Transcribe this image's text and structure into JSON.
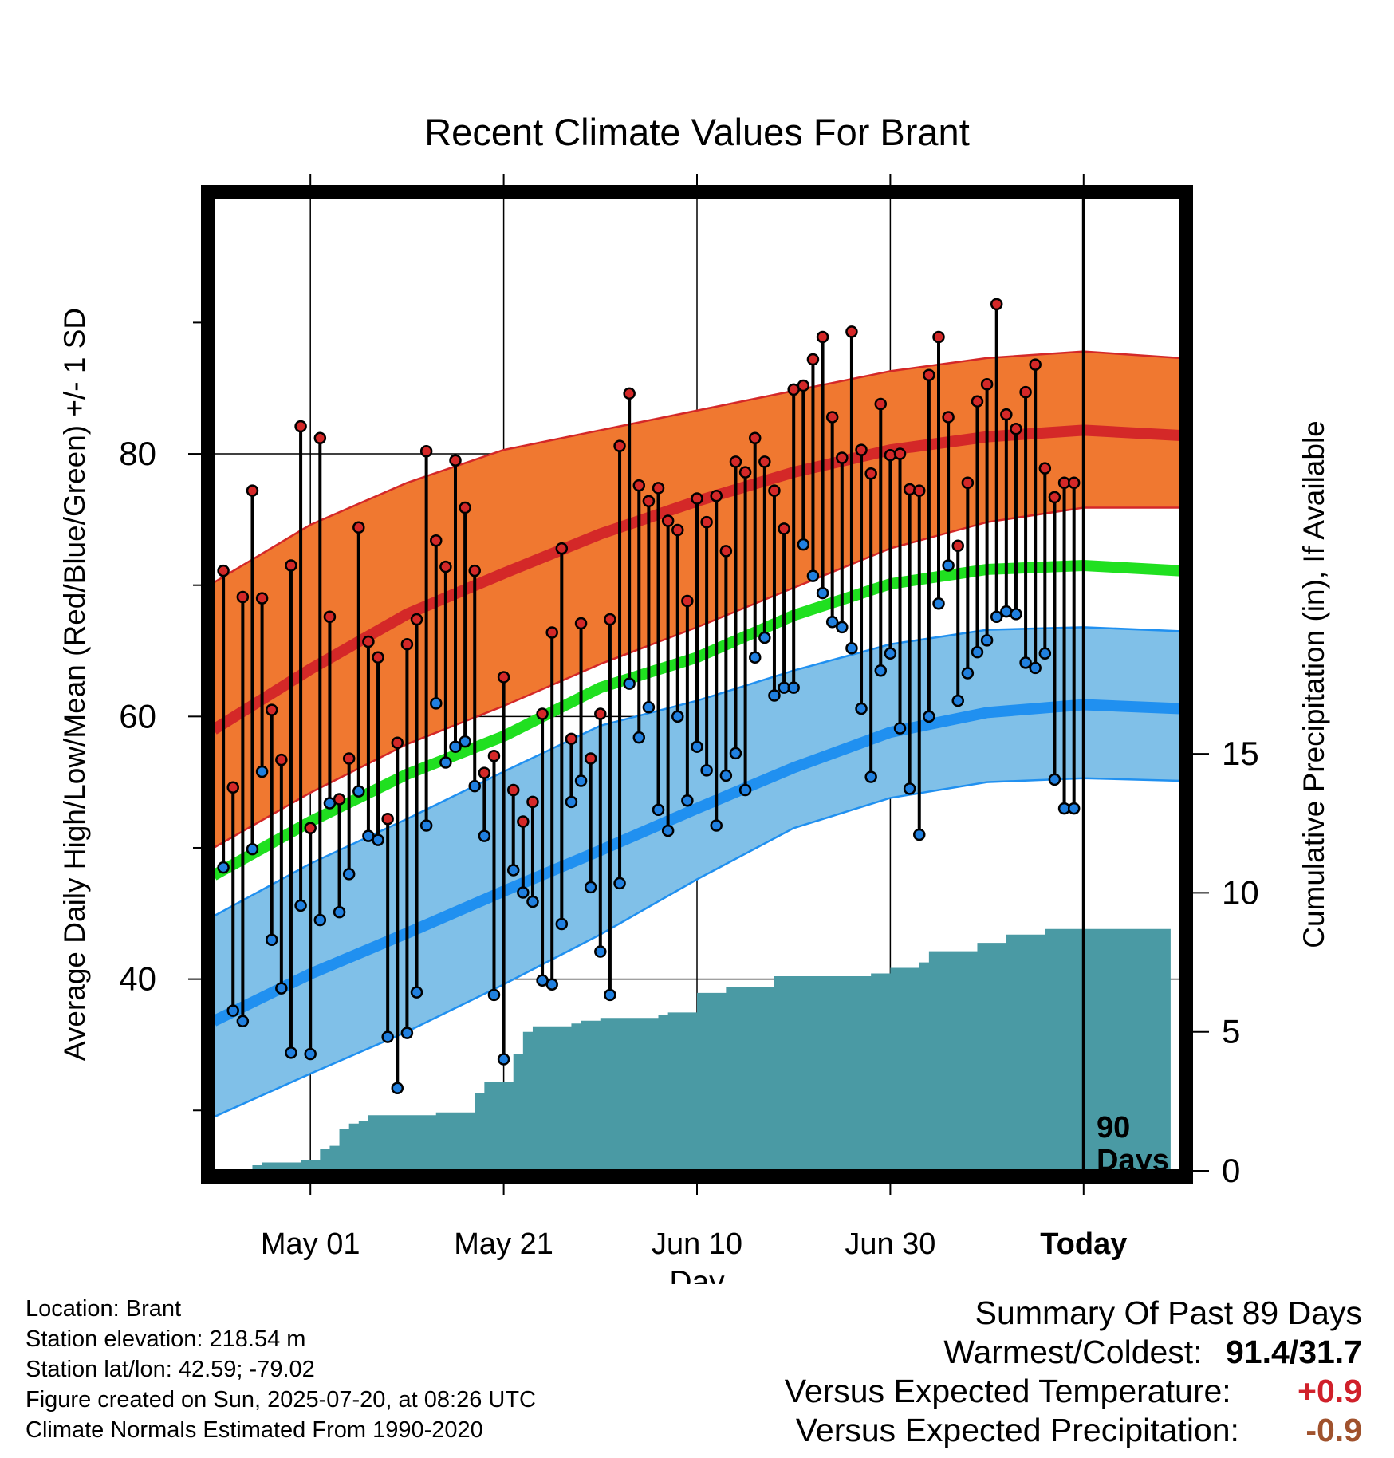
{
  "chart_data": {
    "type": "line",
    "title": "Recent Climate Values For Brant",
    "xlabel": "Day",
    "ylabel_left": "Average Daily High/Low/Mean (Red/Blue/Green) +/- 1 SD",
    "ylabel_right": "Cumulative Precipitation (in), If Available",
    "x_tick_labels": [
      "May 01",
      "May 21",
      "Jun 10",
      "Jun 30",
      "Today"
    ],
    "x_tick_days": [
      10,
      30,
      50,
      70,
      90
    ],
    "y_left_ticks": [
      40,
      60,
      80
    ],
    "y_left_range": [
      25.4,
      99.5
    ],
    "y_right_ticks": [
      0,
      5,
      10,
      15
    ],
    "y_right_range": [
      0,
      35
    ],
    "x_range": [
      0,
      100
    ],
    "today_marker": {
      "day": 90,
      "label_line1": "90",
      "label_line2": "Days"
    },
    "grid": true,
    "colors": {
      "high_band": "#f07830",
      "high_mean": "#d42828",
      "low_band": "#80c0e8",
      "low_mean": "#2090f0",
      "mean": "#20e020",
      "precip": "#4a9aa4",
      "high_dot": "#d42828",
      "low_dot": "#2080e0"
    },
    "normals": {
      "days": [
        0,
        10,
        20,
        30,
        40,
        50,
        60,
        70,
        80,
        90,
        100
      ],
      "high_mean": [
        59.0,
        63.6,
        67.8,
        70.9,
        73.9,
        76.4,
        78.6,
        80.3,
        81.3,
        81.8,
        81.4
      ],
      "high_upper": [
        70.2,
        74.6,
        77.8,
        80.3,
        81.8,
        83.3,
        84.8,
        86.3,
        87.3,
        87.8,
        87.3
      ],
      "high_lower": [
        50.0,
        54.2,
        57.9,
        60.8,
        64.0,
        66.8,
        69.8,
        72.8,
        74.8,
        75.9,
        75.9
      ],
      "avg_mean": [
        47.9,
        52.0,
        55.6,
        58.5,
        62.2,
        64.5,
        67.7,
        70.1,
        71.2,
        71.5,
        71.1
      ],
      "low_mean": [
        36.8,
        40.4,
        43.5,
        46.7,
        49.8,
        53.0,
        56.1,
        58.8,
        60.3,
        60.9,
        60.6
      ],
      "low_upper": [
        44.8,
        48.8,
        52.2,
        55.8,
        59.3,
        61.2,
        63.5,
        65.5,
        66.6,
        66.8,
        66.5
      ],
      "low_lower": [
        29.5,
        32.8,
        36.0,
        39.6,
        43.4,
        47.6,
        51.5,
        53.8,
        55.0,
        55.3,
        55.1
      ]
    },
    "series": [
      {
        "name": "Daily High",
        "days": [
          1,
          2,
          3,
          4,
          5,
          6,
          7,
          8,
          9,
          10,
          11,
          12,
          13,
          14,
          15,
          16,
          17,
          18,
          19,
          20,
          21,
          22,
          23,
          24,
          25,
          26,
          27,
          28,
          29,
          30,
          31,
          32,
          33,
          34,
          35,
          36,
          37,
          38,
          39,
          40,
          41,
          42,
          43,
          44,
          45,
          46,
          47,
          48,
          49,
          50,
          51,
          52,
          53,
          54,
          55,
          56,
          57,
          58,
          59,
          60,
          61,
          62,
          63,
          64,
          65,
          66,
          67,
          68,
          69,
          70,
          71,
          72,
          73,
          74,
          75,
          76,
          77,
          78,
          79,
          80,
          81,
          82,
          83,
          84,
          85,
          86,
          87,
          88,
          89
        ],
        "values": [
          71.1,
          54.6,
          69.1,
          77.2,
          69.0,
          60.5,
          56.7,
          71.5,
          82.1,
          51.5,
          81.2,
          67.6,
          53.7,
          56.8,
          74.4,
          65.7,
          64.5,
          52.2,
          58.0,
          65.5,
          67.4,
          80.2,
          73.4,
          71.4,
          79.5,
          75.9,
          71.1,
          55.7,
          57.0,
          63.0,
          54.4,
          52.0,
          53.5,
          60.2,
          66.4,
          72.8,
          58.3,
          67.1,
          56.8,
          60.2,
          67.4,
          80.6,
          84.6,
          77.6,
          76.4,
          77.4,
          74.9,
          74.2,
          68.8,
          76.6,
          74.8,
          76.8,
          72.6,
          79.4,
          78.6,
          81.2,
          79.4,
          77.2,
          74.3,
          84.9,
          85.2,
          87.2,
          88.9,
          82.8,
          79.7,
          89.3,
          80.3,
          78.5,
          83.8,
          79.9,
          80.0,
          77.3,
          77.2,
          86.0,
          88.9,
          82.8,
          73.0,
          77.8,
          84.0,
          85.3,
          91.4,
          83.0,
          81.9,
          84.7,
          86.8,
          78.9,
          76.7,
          77.8,
          77.8
        ]
      },
      {
        "name": "Daily Low",
        "days": [
          1,
          2,
          3,
          4,
          5,
          6,
          7,
          8,
          9,
          10,
          11,
          12,
          13,
          14,
          15,
          16,
          17,
          18,
          19,
          20,
          21,
          22,
          23,
          24,
          25,
          26,
          27,
          28,
          29,
          30,
          31,
          32,
          33,
          34,
          35,
          36,
          37,
          38,
          39,
          40,
          41,
          42,
          43,
          44,
          45,
          46,
          47,
          48,
          49,
          50,
          51,
          52,
          53,
          54,
          55,
          56,
          57,
          58,
          59,
          60,
          61,
          62,
          63,
          64,
          65,
          66,
          67,
          68,
          69,
          70,
          71,
          72,
          73,
          74,
          75,
          76,
          77,
          78,
          79,
          80,
          81,
          82,
          83,
          84,
          85,
          86,
          87,
          88,
          89
        ],
        "values": [
          48.5,
          37.6,
          36.8,
          49.9,
          55.8,
          43.0,
          39.3,
          34.4,
          45.6,
          34.3,
          44.5,
          53.4,
          45.1,
          48.0,
          54.3,
          50.9,
          50.6,
          35.6,
          31.7,
          35.9,
          39.0,
          51.7,
          61.0,
          56.5,
          57.7,
          58.1,
          54.7,
          50.9,
          38.8,
          33.9,
          48.3,
          46.6,
          45.9,
          39.9,
          39.6,
          44.2,
          53.5,
          55.1,
          47.0,
          42.1,
          38.8,
          47.3,
          62.5,
          58.4,
          60.7,
          52.9,
          51.3,
          60.0,
          53.6,
          57.7,
          55.9,
          51.7,
          55.5,
          57.2,
          54.4,
          64.5,
          66.0,
          61.6,
          62.2,
          62.2,
          73.1,
          70.7,
          69.4,
          67.2,
          66.8,
          65.2,
          60.6,
          55.4,
          63.5,
          64.8,
          59.1,
          54.5,
          51.0,
          60.0,
          68.6,
          71.5,
          61.2,
          63.3,
          64.9,
          65.8,
          67.6,
          68.0,
          67.8,
          64.1,
          63.7,
          64.8,
          55.2,
          53.0,
          53.0
        ]
      },
      {
        "name": "Cumulative Precipitation",
        "days": [
          0,
          3,
          4,
          5,
          6,
          7,
          8,
          9,
          10,
          11,
          12,
          13,
          14,
          15,
          16,
          17,
          18,
          19,
          20,
          21,
          22,
          23,
          24,
          25,
          26,
          27,
          28,
          29,
          30,
          31,
          32,
          33,
          34,
          35,
          36,
          37,
          38,
          39,
          40,
          41,
          42,
          43,
          44,
          45,
          46,
          47,
          48,
          49,
          50,
          51,
          52,
          53,
          54,
          55,
          56,
          57,
          58,
          59,
          60,
          61,
          62,
          63,
          64,
          65,
          66,
          67,
          68,
          69,
          70,
          71,
          72,
          73,
          74,
          75,
          76,
          77,
          78,
          79,
          80,
          81,
          82,
          83,
          84,
          85,
          86,
          87,
          88,
          89,
          90,
          99
        ],
        "values": [
          0,
          0,
          0.2,
          0.3,
          0.3,
          0.3,
          0.3,
          0.4,
          0.4,
          0.8,
          0.9,
          1.5,
          1.7,
          1.8,
          2.0,
          2.0,
          2.0,
          2.0,
          2.0,
          2.0,
          2.0,
          2.1,
          2.1,
          2.1,
          2.1,
          2.8,
          3.2,
          3.2,
          3.2,
          4.2,
          5.0,
          5.2,
          5.2,
          5.2,
          5.2,
          5.3,
          5.4,
          5.4,
          5.5,
          5.5,
          5.5,
          5.5,
          5.5,
          5.5,
          5.6,
          5.7,
          5.7,
          5.7,
          6.4,
          6.4,
          6.4,
          6.6,
          6.6,
          6.6,
          6.6,
          6.6,
          7.0,
          7.0,
          7.0,
          7.0,
          7.0,
          7.0,
          7.0,
          7.0,
          7.0,
          7.0,
          7.1,
          7.1,
          7.3,
          7.3,
          7.3,
          7.5,
          7.9,
          7.9,
          7.9,
          7.9,
          7.9,
          8.2,
          8.2,
          8.2,
          8.5,
          8.5,
          8.5,
          8.5,
          8.7,
          8.7,
          8.7,
          8.7,
          8.7,
          8.7
        ]
      }
    ]
  },
  "meta": {
    "location": "Location: Brant",
    "elevation": "Station elevation: 218.54 m",
    "latlon": "Station lat/lon: 42.59; -79.02",
    "created": "Figure created on Sun, 2025-07-20, at 08:26 UTC",
    "normals": "Climate Normals Estimated From 1990-2020"
  },
  "summary": {
    "heading": "Summary Of Past 89 Days",
    "warmest_coldest_label": "Warmest/Coldest:",
    "warmest_coldest_value": "91.4/31.7",
    "temp_label": "Versus Expected Temperature:",
    "temp_value": "+0.9",
    "precip_label": "Versus Expected Precipitation:",
    "precip_value": "-0.9"
  }
}
